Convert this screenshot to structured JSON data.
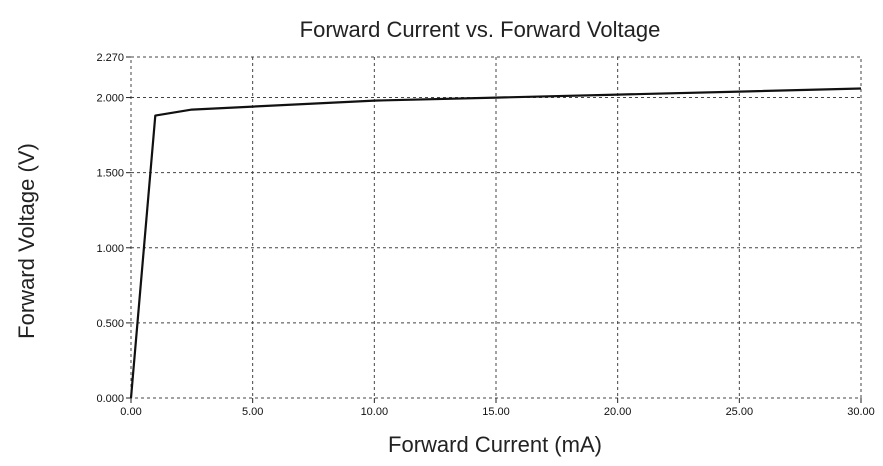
{
  "chart_data": {
    "type": "line",
    "title": "Forward Current vs. Forward Voltage",
    "xlabel": "Forward Current (mA)",
    "ylabel": "Forward Voltage (V)",
    "xlim": [
      0,
      30
    ],
    "ylim": [
      0,
      2.27
    ],
    "x_ticks": [
      0,
      5,
      10,
      15,
      20,
      25,
      30
    ],
    "x_tick_labels": [
      "0.00",
      "5.00",
      "10.00",
      "15.00",
      "20.00",
      "25.00",
      "30.00"
    ],
    "y_ticks": [
      0,
      0.5,
      1.0,
      1.5,
      2.0,
      2.27
    ],
    "y_tick_labels": [
      "0.000",
      "0.500",
      "1.000",
      "1.500",
      "2.000",
      "2.270"
    ],
    "grid": true,
    "series": [
      {
        "color": "#111111",
        "x": [
          0,
          1.0,
          2.5,
          5,
          10,
          15,
          20,
          25,
          30
        ],
        "y": [
          0.0,
          1.88,
          1.92,
          1.94,
          1.98,
          2.0,
          2.02,
          2.04,
          2.06
        ]
      }
    ]
  }
}
